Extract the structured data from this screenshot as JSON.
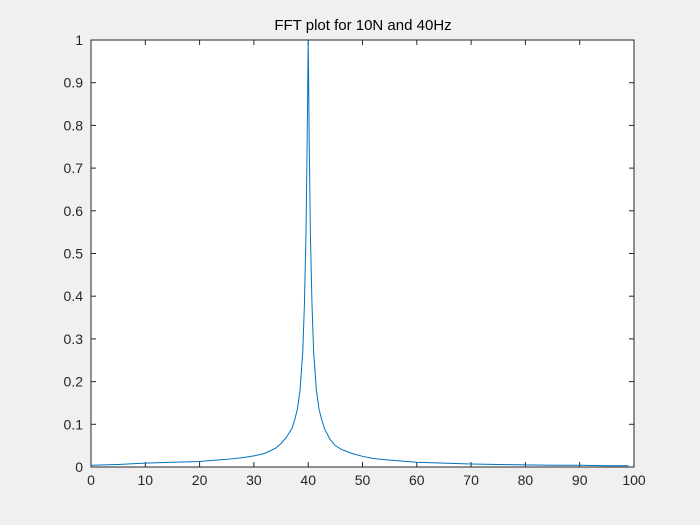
{
  "chart_data": {
    "type": "line",
    "title": "FFT plot for 10N and 40Hz",
    "xlabel": "",
    "ylabel": "",
    "xlim": [
      0,
      100
    ],
    "ylim": [
      0,
      1
    ],
    "x_ticks": [
      "0",
      "10",
      "20",
      "30",
      "40",
      "50",
      "60",
      "70",
      "80",
      "90",
      "100"
    ],
    "y_ticks": [
      "0",
      "0.1",
      "0.2",
      "0.3",
      "0.4",
      "0.5",
      "0.6",
      "0.7",
      "0.8",
      "0.9",
      "1"
    ],
    "grid": false,
    "line_color": "#0072bd",
    "series": [
      {
        "x": [
          0,
          5,
          10,
          15,
          20,
          25,
          28,
          30,
          32,
          34,
          35,
          36,
          37,
          37.5,
          38,
          38.5,
          39,
          39.3,
          39.6,
          39.8,
          40,
          40.2,
          40.4,
          40.7,
          41,
          41.5,
          42,
          42.5,
          43,
          44,
          45,
          46,
          48,
          50,
          52,
          55,
          60,
          65,
          70,
          75,
          80,
          85,
          90,
          95,
          99
        ],
        "y": [
          0.004,
          0.006,
          0.009,
          0.011,
          0.013,
          0.018,
          0.022,
          0.026,
          0.032,
          0.044,
          0.055,
          0.07,
          0.09,
          0.11,
          0.135,
          0.18,
          0.27,
          0.38,
          0.55,
          0.75,
          1.0,
          0.75,
          0.55,
          0.38,
          0.27,
          0.18,
          0.135,
          0.11,
          0.09,
          0.065,
          0.05,
          0.042,
          0.032,
          0.025,
          0.02,
          0.016,
          0.011,
          0.009,
          0.007,
          0.006,
          0.005,
          0.004,
          0.004,
          0.003,
          0.003
        ]
      }
    ]
  }
}
